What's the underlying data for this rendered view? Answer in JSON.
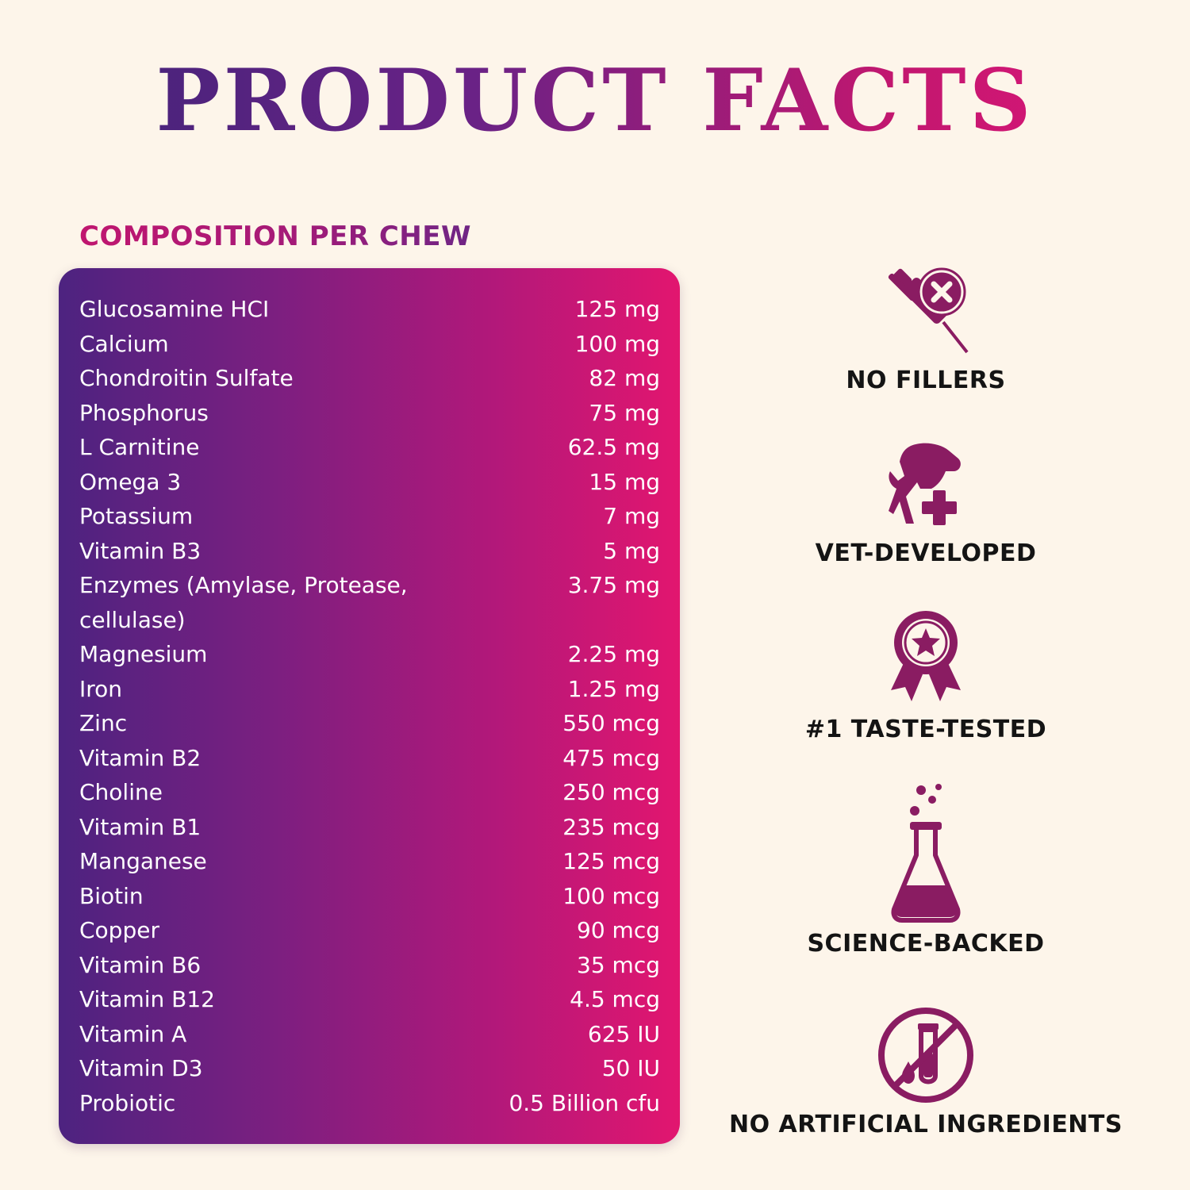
{
  "title": "PRODUCT FACTS",
  "composition_heading": "COMPOSITION PER CHEW",
  "composition": [
    {
      "name": "Glucosamine HCI",
      "value": "125 mg"
    },
    {
      "name": "Calcium",
      "value": "100 mg"
    },
    {
      "name": "Chondroitin Sulfate",
      "value": "82 mg"
    },
    {
      "name": "Phosphorus",
      "value": "75 mg"
    },
    {
      "name": "L Carnitine",
      "value": "62.5 mg"
    },
    {
      "name": "Omega 3",
      "value": "15 mg"
    },
    {
      "name": "Potassium",
      "value": "7 mg"
    },
    {
      "name": "Vitamin B3",
      "value": "5 mg"
    },
    {
      "name": "Enzymes (Amylase, Protease, cellulase)",
      "value": "3.75 mg"
    },
    {
      "name": "Magnesium",
      "value": "2.25 mg"
    },
    {
      "name": "Iron",
      "value": "1.25 mg"
    },
    {
      "name": "Zinc",
      "value": "550 mcg"
    },
    {
      "name": "Vitamin B2",
      "value": "475 mcg"
    },
    {
      "name": "Choline",
      "value": "250 mcg"
    },
    {
      "name": "Vitamin B1",
      "value": "235 mcg"
    },
    {
      "name": "Manganese",
      "value": "125 mcg"
    },
    {
      "name": "Biotin",
      "value": "100 mcg"
    },
    {
      "name": "Copper",
      "value": "90 mcg"
    },
    {
      "name": "Vitamin B6",
      "value": "35 mcg"
    },
    {
      "name": "Vitamin B12",
      "value": "4.5 mcg"
    },
    {
      "name": "Vitamin A",
      "value": "625 IU"
    },
    {
      "name": "Vitamin D3",
      "value": "50 IU"
    },
    {
      "name": "Probiotic",
      "value": "0.5 Billion cfu"
    }
  ],
  "features": [
    {
      "label": "NO FILLERS",
      "icon": "syringe-x-icon"
    },
    {
      "label": "VET-DEVELOPED",
      "icon": "pet-plus-icon"
    },
    {
      "label": "#1 TASTE-TESTED",
      "icon": "award-ribbon-icon"
    },
    {
      "label": "SCIENCE-BACKED",
      "icon": "flask-icon"
    },
    {
      "label": "NO ARTIFICIAL INGREDIENTS",
      "icon": "no-test-tube-icon"
    }
  ],
  "colors": {
    "background": "#fdf5ea",
    "accent_purple": "#4d2380",
    "accent_pink": "#e2166f",
    "icon_color": "#8a1c62"
  }
}
